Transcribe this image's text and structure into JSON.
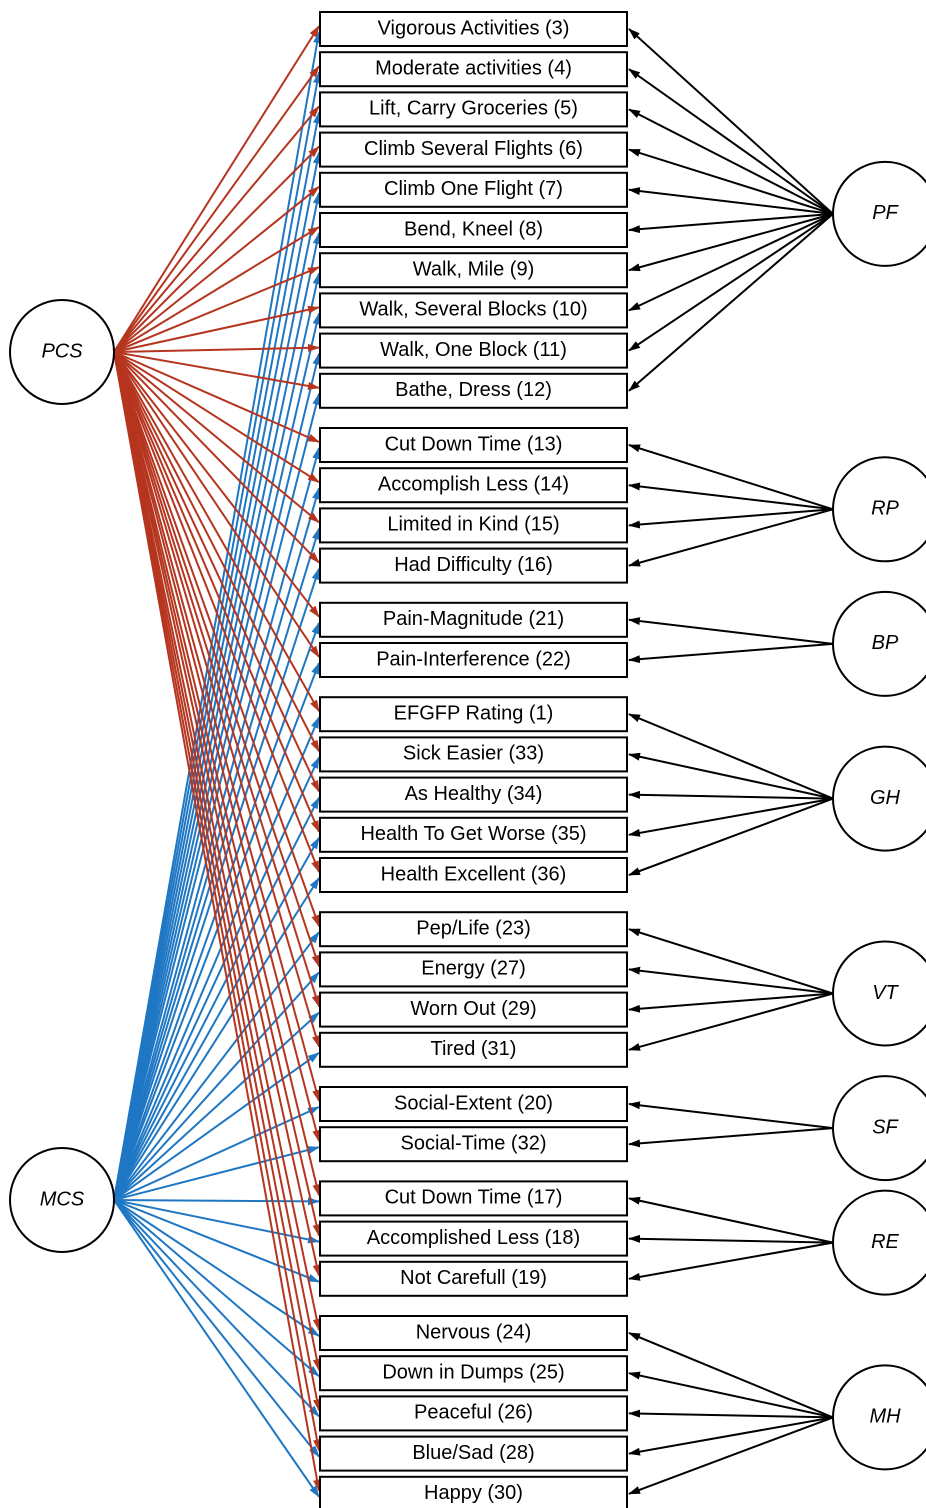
{
  "left_factors": [
    "PCS",
    "MCS"
  ],
  "groups": [
    {
      "factor": "PF",
      "items": [
        "Vigorous Activities (3)",
        "Moderate activities (4)",
        "Lift, Carry Groceries (5)",
        "Climb Several Flights (6)",
        "Climb One Flight (7)",
        "Bend, Kneel (8)",
        "Walk, Mile (9)",
        "Walk, Several Blocks (10)",
        "Walk, One Block (11)",
        "Bathe, Dress (12)"
      ]
    },
    {
      "factor": "RP",
      "items": [
        "Cut Down Time (13)",
        "Accomplish Less (14)",
        "Limited in Kind (15)",
        "Had Difficulty (16)"
      ]
    },
    {
      "factor": "BP",
      "items": [
        "Pain-Magnitude (21)",
        "Pain-Interference (22)"
      ]
    },
    {
      "factor": "GH",
      "items": [
        "EFGFP Rating (1)",
        "Sick Easier (33)",
        "As Healthy (34)",
        "Health To Get Worse (35)",
        "Health Excellent (36)"
      ]
    },
    {
      "factor": "VT",
      "items": [
        "Pep/Life (23)",
        "Energy (27)",
        "Worn Out (29)",
        "Tired (31)"
      ]
    },
    {
      "factor": "SF",
      "items": [
        "Social-Extent (20)",
        "Social-Time (32)"
      ]
    },
    {
      "factor": "RE",
      "items": [
        "Cut Down Time (17)",
        "Accomplished Less (18)",
        "Not Carefull (19)"
      ]
    },
    {
      "factor": "MH",
      "items": [
        "Nervous (24)",
        "Down in Dumps (25)",
        "Peaceful (26)",
        "Blue/Sad (28)",
        "Happy (30)"
      ]
    }
  ]
}
